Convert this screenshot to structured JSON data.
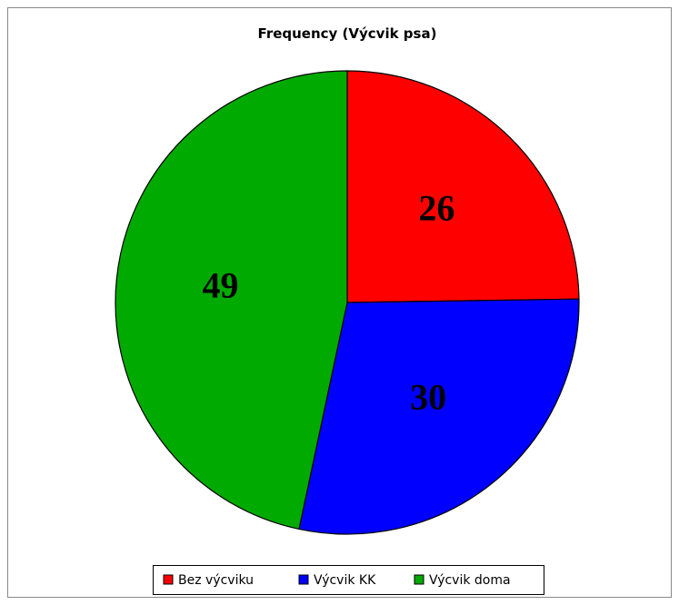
{
  "chart_data": {
    "type": "pie",
    "title": "Frequency (Výcvik psa)",
    "categories": [
      "Bez výcviku",
      "Výcvik KK",
      "Výcvik doma"
    ],
    "values": [
      26,
      30,
      49
    ],
    "colors": [
      "#ff0000",
      "#0000ff",
      "#00aa00"
    ],
    "legend": "bottom"
  }
}
